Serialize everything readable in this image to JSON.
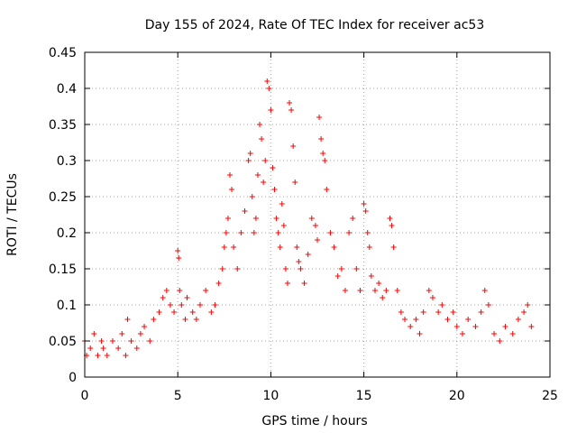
{
  "chart_data": {
    "type": "scatter",
    "title": "Day 155 of 2024, Rate Of TEC Index for receiver ac53",
    "xlabel": "GPS time / hours",
    "ylabel": "ROTI / TECUs",
    "xlim": [
      0,
      25
    ],
    "ylim": [
      0,
      0.45
    ],
    "x_ticks": [
      "0",
      "5",
      "10",
      "15",
      "20",
      "25"
    ],
    "y_ticks": [
      "0",
      "0.05",
      "0.1",
      "0.15",
      "0.2",
      "0.25",
      "0.3",
      "0.35",
      "0.4",
      "0.45"
    ],
    "grid": true,
    "marker": "+",
    "color": "#ff0000",
    "series": [
      {
        "x": [
          0.0,
          0.1,
          0.3,
          0.5,
          0.7,
          0.9,
          1.0,
          1.2,
          1.5,
          1.8,
          2.0,
          2.2,
          2.3,
          2.5,
          2.8,
          3.0,
          3.2,
          3.5,
          3.7,
          4.0,
          4.2,
          4.4,
          4.6,
          4.8,
          5.0,
          5.05,
          5.1,
          5.2,
          5.4,
          5.5,
          5.8,
          6.0,
          6.2,
          6.5,
          6.8,
          7.0,
          7.2,
          7.4,
          7.5,
          7.6,
          7.7,
          7.8,
          7.9,
          8.0,
          8.2,
          8.4,
          8.6,
          8.8,
          8.9,
          9.0,
          9.1,
          9.2,
          9.3,
          9.4,
          9.5,
          9.6,
          9.7,
          9.8,
          9.9,
          10.0,
          10.1,
          10.2,
          10.3,
          10.4,
          10.5,
          10.6,
          10.7,
          10.8,
          10.9,
          11.0,
          11.1,
          11.2,
          11.3,
          11.4,
          11.5,
          11.6,
          11.8,
          12.0,
          12.2,
          12.4,
          12.5,
          12.6,
          12.7,
          12.8,
          12.9,
          13.0,
          13.2,
          13.4,
          13.6,
          13.8,
          14.0,
          14.2,
          14.4,
          14.6,
          14.8,
          15.0,
          15.1,
          15.2,
          15.3,
          15.4,
          15.6,
          15.8,
          16.0,
          16.2,
          16.4,
          16.5,
          16.6,
          16.8,
          17.0,
          17.2,
          17.5,
          17.8,
          18.0,
          18.2,
          18.5,
          18.7,
          19.0,
          19.2,
          19.5,
          19.8,
          20.0,
          20.3,
          20.6,
          21.0,
          21.3,
          21.5,
          21.7,
          22.0,
          22.3,
          22.6,
          23.0,
          23.3,
          23.6,
          23.8,
          24.0
        ],
        "y": [
          0.05,
          0.03,
          0.04,
          0.06,
          0.03,
          0.05,
          0.04,
          0.03,
          0.05,
          0.04,
          0.06,
          0.03,
          0.08,
          0.05,
          0.04,
          0.06,
          0.07,
          0.05,
          0.08,
          0.09,
          0.11,
          0.12,
          0.1,
          0.09,
          0.175,
          0.165,
          0.12,
          0.1,
          0.08,
          0.11,
          0.09,
          0.08,
          0.1,
          0.12,
          0.09,
          0.1,
          0.13,
          0.15,
          0.18,
          0.2,
          0.22,
          0.28,
          0.26,
          0.18,
          0.15,
          0.2,
          0.23,
          0.3,
          0.31,
          0.25,
          0.2,
          0.22,
          0.28,
          0.35,
          0.33,
          0.27,
          0.3,
          0.41,
          0.4,
          0.37,
          0.29,
          0.26,
          0.22,
          0.2,
          0.18,
          0.24,
          0.21,
          0.15,
          0.13,
          0.38,
          0.37,
          0.32,
          0.27,
          0.18,
          0.16,
          0.15,
          0.13,
          0.17,
          0.22,
          0.21,
          0.19,
          0.36,
          0.33,
          0.31,
          0.3,
          0.26,
          0.2,
          0.18,
          0.14,
          0.15,
          0.12,
          0.2,
          0.22,
          0.15,
          0.12,
          0.24,
          0.23,
          0.2,
          0.18,
          0.14,
          0.12,
          0.13,
          0.11,
          0.12,
          0.22,
          0.21,
          0.18,
          0.12,
          0.09,
          0.08,
          0.07,
          0.08,
          0.06,
          0.09,
          0.12,
          0.11,
          0.09,
          0.1,
          0.08,
          0.09,
          0.07,
          0.06,
          0.08,
          0.07,
          0.09,
          0.12,
          0.1,
          0.06,
          0.05,
          0.07,
          0.06,
          0.08,
          0.09,
          0.1,
          0.07
        ]
      }
    ]
  }
}
